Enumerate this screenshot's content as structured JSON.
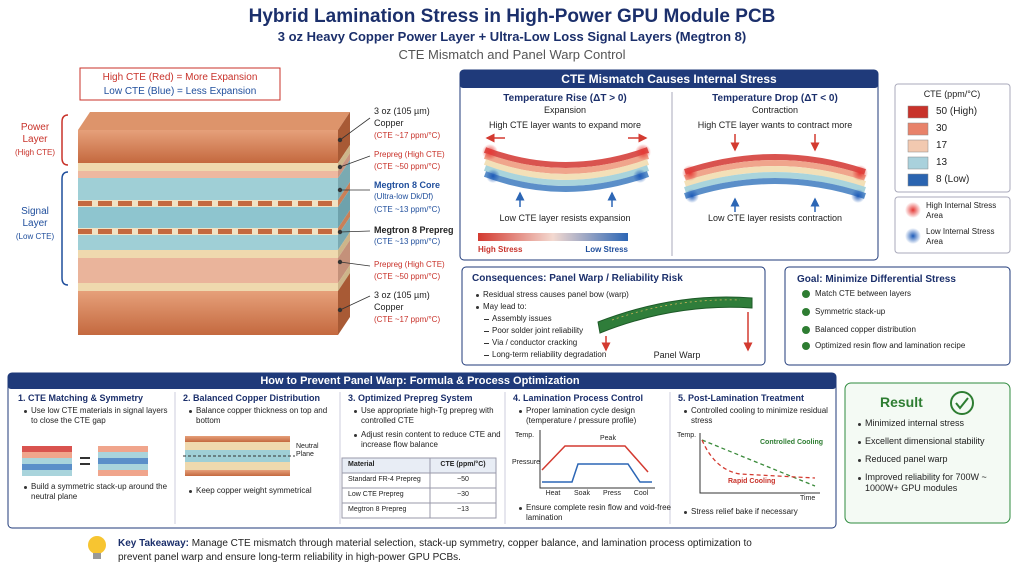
{
  "header": {
    "title": "Hybrid Lamination Stress in High-Power GPU Module PCB",
    "subtitle": "3 oz Heavy Copper Power Layer  +  Ultra-Low Loss Signal Layers (Megtron 8)",
    "caption": "CTE Mismatch and Panel Warp Control"
  },
  "legend": {
    "high": "High CTE (Red) = More Expansion",
    "low": "Low CTE (Blue) = Less Expansion"
  },
  "stack": {
    "power": {
      "label": "Power Layer",
      "note": "(High CTE)"
    },
    "signal": {
      "label": "Signal Layer",
      "note": "(Low CTE)"
    },
    "callouts": [
      [
        "3 oz (105 µm)",
        "Copper",
        "(CTE ~17 ppm/°C)"
      ],
      [
        "Prepreg (High CTE)",
        "(CTE ~50 ppm/°C)"
      ],
      [
        "Megtron 8 Core",
        "(Ultra-low Dk/Df)",
        "(CTE ~13 ppm/°C)"
      ],
      [
        "Megtron 8 Prepreg",
        "(CTE ~13 ppm/°C)"
      ],
      [
        "Prepreg (High CTE)",
        "(CTE ~50 ppm/°C)"
      ],
      [
        "3 oz (105 µm)",
        "Copper",
        "(CTE ~17 ppm/°C)"
      ]
    ]
  },
  "stress_panel": {
    "title": "CTE Mismatch Causes Internal Stress",
    "rise": {
      "title": "Temperature Rise (ΔT > 0)",
      "mode": "Expansion",
      "top": "High CTE layer wants to expand more",
      "bottom": "Low CTE layer resists expansion"
    },
    "drop": {
      "title": "Temperature Drop (ΔT < 0)",
      "mode": "Contraction",
      "top": "High CTE layer wants to contract more",
      "bottom": "Low CTE layer resists contraction"
    },
    "high_stress": "High Stress",
    "low_stress": "Low Stress"
  },
  "cte_scale": {
    "title": "CTE (ppm/°C)",
    "items": [
      "50  (High)",
      "30",
      "17",
      "13",
      "8  (Low)"
    ]
  },
  "stress_legend": {
    "high": "High Internal Stress Area",
    "low": "Low Internal Stress Area"
  },
  "consequences": {
    "title": "Consequences: Panel Warp / Reliability Risk",
    "bullets": [
      "Residual stress causes panel bow (warp)",
      "May lead to:"
    ],
    "risks": [
      "Assembly issues",
      "Poor solder joint reliability",
      "Via / conductor cracking",
      "Long-term reliability degradation"
    ],
    "warp_label": "Panel Warp"
  },
  "goal": {
    "title": "Goal: Minimize Differential Stress",
    "items": [
      "Match CTE between layers",
      "Symmetric stack-up",
      "Balanced copper distribution",
      "Optimized resin flow and lamination recipe"
    ]
  },
  "prevention": {
    "title": "How to Prevent Panel Warp: Formula & Process Optimization",
    "steps": [
      {
        "title": "1. CTE Matching & Symmetry",
        "bullets": [
          "Use low CTE materials in signal layers to close the CTE gap",
          "Build a symmetric stack-up around the neutral plane"
        ]
      },
      {
        "title": "2. Balanced Copper Distribution",
        "bullets": [
          "Balance copper thickness on top and bottom",
          "Keep copper weight symmetrical"
        ],
        "neutral_label": "Neutral Plane"
      },
      {
        "title": "3. Optimized Prepreg System",
        "bullets": [
          "Use appropriate high-Tg prepreg with controlled CTE",
          "Adjust resin content to reduce CTE and increase flow balance"
        ],
        "table": {
          "header": [
            "Material",
            "CTE (ppm/°C)"
          ],
          "rows": [
            [
              "Standard FR-4 Prepreg",
              "~50"
            ],
            [
              "Low CTE Prepreg",
              "~30"
            ],
            [
              "Megtron 8 Prepreg",
              "~13"
            ]
          ]
        }
      },
      {
        "title": "4. Lamination Process Control",
        "bullets": [
          "Proper lamination cycle design (temperature / pressure profile)",
          "Ensure complete resin flow and void-free lamination"
        ],
        "chart_labels": {
          "temp": "Temp.",
          "pressure": "Pressure",
          "peak": "Peak",
          "stages": [
            "Heat",
            "Soak",
            "Press",
            "Cool"
          ]
        }
      },
      {
        "title": "5. Post-Lamination Treatment",
        "bullets": [
          "Controlled cooling to minimize residual stress",
          "Stress relief bake if necessary"
        ],
        "chart_labels": {
          "temp": "Temp.",
          "time": "Time",
          "controlled": "Controlled Cooling",
          "rapid": "Rapid Cooling"
        }
      }
    ]
  },
  "result": {
    "title": "Result",
    "items": [
      "Minimized internal stress",
      "Excellent dimensional stability",
      "Reduced panel warp",
      "Improved reliability for 700W ~ 1000W+ GPU modules"
    ]
  },
  "takeaway": {
    "label": "Key Takeaway:",
    "text": "Manage CTE mismatch through material selection, stack-up symmetry, copper balance, and lamination process optimization to prevent panel warp and ensure long-term reliability in high-power GPU PCBs."
  }
}
